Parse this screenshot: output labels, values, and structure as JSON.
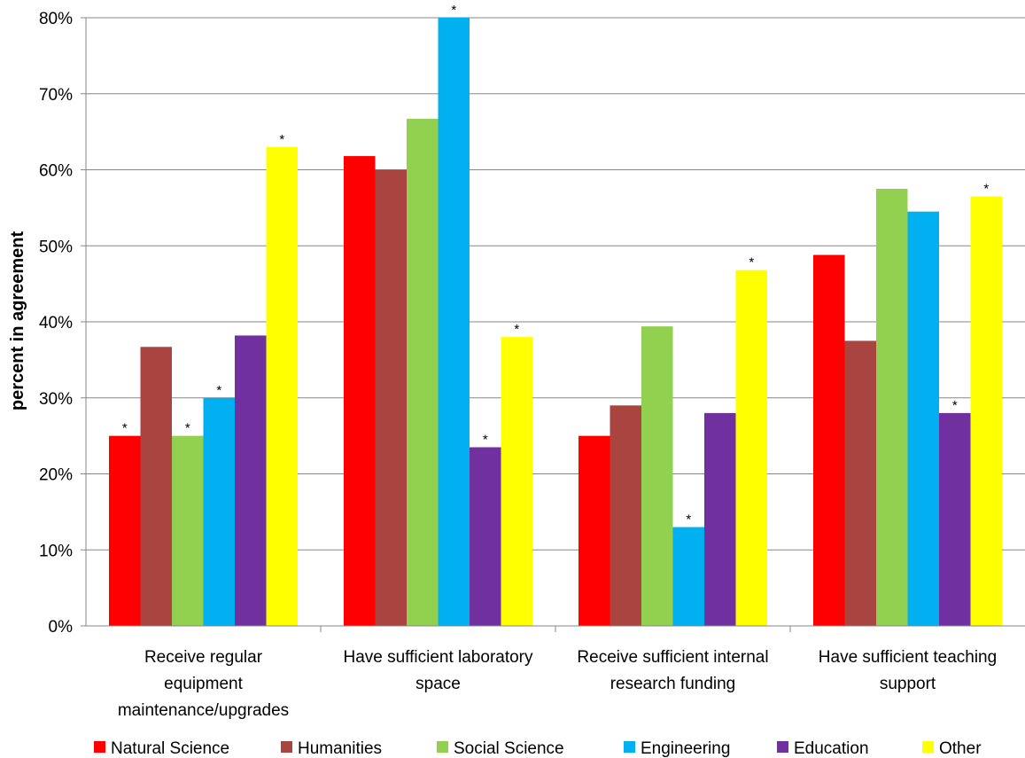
{
  "chart_data": {
    "type": "bar",
    "title": "",
    "xlabel": "",
    "ylabel": "percent in agreement",
    "ylim": [
      0,
      80
    ],
    "y_ticks": [
      "0%",
      "10%",
      "20%",
      "30%",
      "40%",
      "50%",
      "60%",
      "70%",
      "80%"
    ],
    "grid": true,
    "legend_position": "bottom",
    "categories": [
      [
        "Receive regular",
        "equipment",
        "maintenance/upgrades"
      ],
      [
        "Have sufficient laboratory",
        "space"
      ],
      [
        "Receive sufficient internal",
        "research funding"
      ],
      [
        "Have sufficient teaching",
        "support"
      ]
    ],
    "series": [
      {
        "name": "Natural Science",
        "color": "#FF0000",
        "values": [
          25,
          61.8,
          25,
          48.8
        ],
        "marked": [
          true,
          false,
          false,
          false
        ]
      },
      {
        "name": "Humanities",
        "color": "#A94441",
        "values": [
          36.7,
          60,
          29,
          37.5
        ],
        "marked": [
          false,
          false,
          false,
          false
        ]
      },
      {
        "name": "Social Science",
        "color": "#92D050",
        "values": [
          25,
          66.7,
          39.4,
          57.5
        ],
        "marked": [
          true,
          false,
          false,
          false
        ]
      },
      {
        "name": "Engineering",
        "color": "#00B0F0",
        "values": [
          30,
          80,
          13,
          54.5
        ],
        "marked": [
          true,
          true,
          true,
          false
        ]
      },
      {
        "name": "Education",
        "color": "#7030A0",
        "values": [
          38.2,
          23.5,
          28,
          28
        ],
        "marked": [
          false,
          true,
          false,
          true
        ]
      },
      {
        "name": "Other",
        "color": "#FFFF00",
        "values": [
          63,
          38,
          46.8,
          56.5
        ],
        "marked": [
          true,
          true,
          true,
          true
        ]
      }
    ],
    "marker_symbol": "*"
  }
}
